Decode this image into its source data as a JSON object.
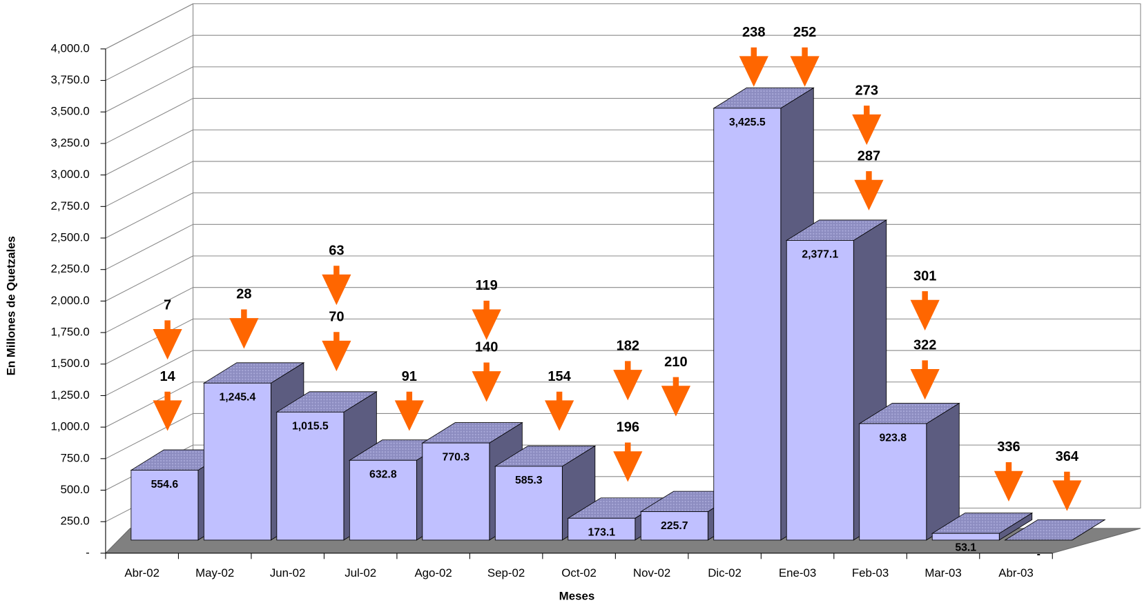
{
  "chart_data": {
    "type": "bar3d",
    "y_label": "En Millones de Quetzales",
    "x_label": "Meses",
    "categories": [
      "Abr-02",
      "May-02",
      "Jun-02",
      "Jul-02",
      "Ago-02",
      "Sep-02",
      "Oct-02",
      "Nov-02",
      "Dic-02",
      "Ene-03",
      "Feb-03",
      "Mar-03",
      "Abr-03"
    ],
    "values": [
      554.6,
      1245.4,
      1015.5,
      632.8,
      770.3,
      585.3,
      173.1,
      225.7,
      3425.5,
      2377.1,
      923.8,
      53.1,
      0
    ],
    "value_labels": [
      "554.6",
      "1,245.4",
      "1,015.5",
      "632.8",
      "770.3",
      "585.3",
      "173.1",
      "225.7",
      "3,425.5",
      "2,377.1",
      "923.8",
      "53.1",
      "-"
    ],
    "color": "#c0c0ff",
    "ylim": [
      0,
      4000
    ],
    "yticks": [
      {
        "value": 0,
        "label": "-"
      },
      {
        "value": 250,
        "label": "250.0"
      },
      {
        "value": 500,
        "label": "500.0"
      },
      {
        "value": 750,
        "label": "750.0"
      },
      {
        "value": 1000,
        "label": "1,000.0"
      },
      {
        "value": 1250,
        "label": "1,250.0"
      },
      {
        "value": 1500,
        "label": "1,500.0"
      },
      {
        "value": 1750,
        "label": "1,750.0"
      },
      {
        "value": 2000,
        "label": "2,000.0"
      },
      {
        "value": 2250,
        "label": "2,250.0"
      },
      {
        "value": 2500,
        "label": "2,500.0"
      },
      {
        "value": 2750,
        "label": "2,750.0"
      },
      {
        "value": 3000,
        "label": "3,000.0"
      },
      {
        "value": 3250,
        "label": "3,250.0"
      },
      {
        "value": 3500,
        "label": "3,500.0"
      },
      {
        "value": 3750,
        "label": "3,750.0"
      },
      {
        "value": 4000,
        "label": "4,000.0"
      }
    ],
    "grid": true,
    "annotations": [
      {
        "label": 7,
        "color": "#ff6600"
      },
      {
        "label": 14,
        "color": "#ff6600"
      },
      {
        "label": 28,
        "color": "#ff6600"
      },
      {
        "label": 63,
        "color": "#ff6600"
      },
      {
        "label": 70,
        "color": "#ff6600"
      },
      {
        "label": 91,
        "color": "#008080"
      },
      {
        "label": 119,
        "color": "#ff6600"
      },
      {
        "label": 140,
        "color": "#ff6600"
      },
      {
        "label": 154,
        "color": "#008080"
      },
      {
        "label": 182,
        "color": "#008080"
      },
      {
        "label": 196,
        "color": "#ff6600"
      },
      {
        "label": 210,
        "color": "#ff6600"
      },
      {
        "label": 238,
        "color": "#ff6600"
      },
      {
        "label": 252,
        "color": "#ff6600"
      },
      {
        "label": 273,
        "color": "#ff6600"
      },
      {
        "label": 287,
        "color": "#ff6600"
      },
      {
        "label": 301,
        "color": "#ff6600"
      },
      {
        "label": 322,
        "color": "#ff6600"
      },
      {
        "label": 336,
        "color": "#008080"
      },
      {
        "label": 364,
        "color": "#ff6600"
      }
    ]
  }
}
